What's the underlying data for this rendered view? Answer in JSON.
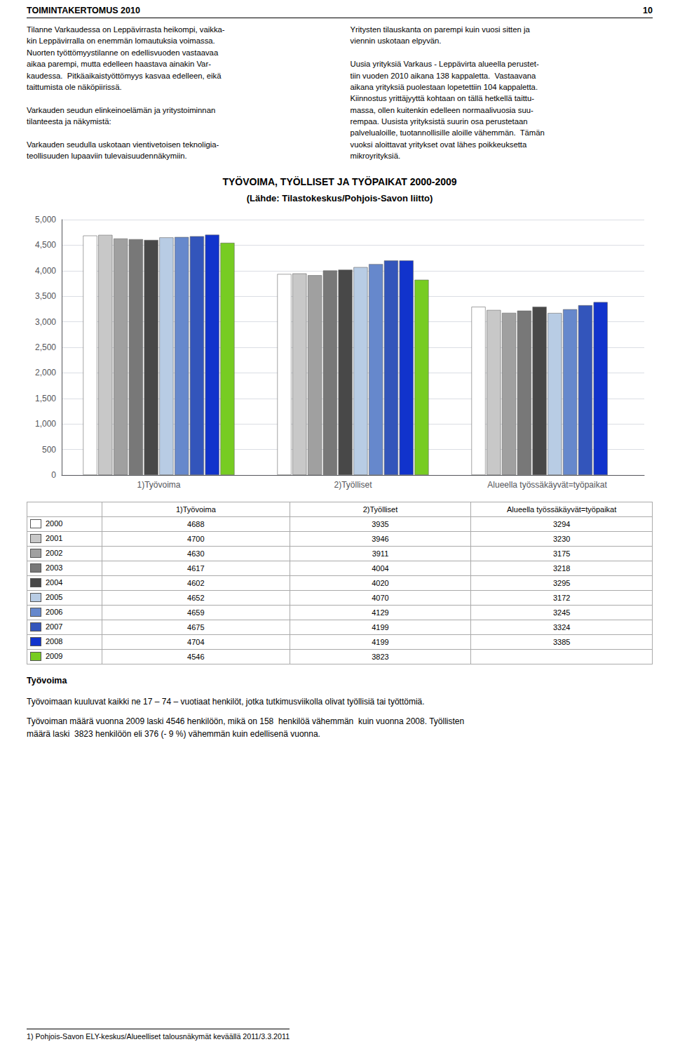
{
  "chart_data": {
    "type": "bar",
    "title": "TYÖVOIMA, TYÖLLISET JA TYÖPAIKAT 2000-2009",
    "subtitle": "(Lähde: Tilastokeskus/Pohjois-Savon liitto)",
    "categories": [
      "1)Työvoima",
      "2)Työlliset",
      "Alueella työssäkäyvät=työpaikat"
    ],
    "series": [
      {
        "name": "2000",
        "color": "white",
        "values": [
          4688,
          3935,
          3294
        ]
      },
      {
        "name": "2001",
        "color": "#c8c8c8",
        "values": [
          4700,
          3946,
          3230
        ]
      },
      {
        "name": "2002",
        "color": "#a0a0a0",
        "values": [
          4630,
          3911,
          3175
        ]
      },
      {
        "name": "2003",
        "color": "#787878",
        "values": [
          4617,
          4004,
          3218
        ]
      },
      {
        "name": "2004",
        "color": "#484848",
        "values": [
          4602,
          4020,
          3295
        ]
      },
      {
        "name": "2005",
        "color": "#b8cce4",
        "values": [
          4652,
          4070,
          3172
        ]
      },
      {
        "name": "2006",
        "color": "#6688cc",
        "values": [
          4659,
          4129,
          3245
        ]
      },
      {
        "name": "2007",
        "color": "#3355bb",
        "values": [
          4675,
          4199,
          3324
        ]
      },
      {
        "name": "2008",
        "color": "#1133cc",
        "values": [
          4704,
          4199,
          3385
        ]
      },
      {
        "name": "2009",
        "color": "#77cc22",
        "values": [
          4546,
          3823,
          null
        ]
      }
    ],
    "ylim": [
      0,
      5000
    ],
    "yticks": [
      0,
      500,
      1000,
      1500,
      2000,
      2500,
      3000,
      3500,
      4000,
      4500,
      5000
    ],
    "grid": true,
    "annotations": [
      "TOIMINTAKERTOMUS 2010",
      "10",
      "Tilanne Varkaudessa on Leppävirrasta heikompi, vaikka-\nkin Leppävirralla on enemmän lomautuksia voimassa.\nNuorten työttömyystilanne on edellisvuoden vastaavaa\naikaa parempi, mutta edelleen haastava ainakin Var-\nkaudessa.  Pitkäaikaistyöttömyys kasvaa edelleen, eikä\ntaittumista ole näköpiirissä.\n\nVarkauden seudun elinkeinoelämän ja yritystoiminnan\ntilanteesta ja näkymistä:\n\nVarkauden seudulla uskotaan vientivetoisen teknoligia-\nteollisuuden lupaaviin tulevaisuudennäkymiin.",
      "Yritysten tilauskanta on parempi kuin vuosi sitten ja\nviennin uskotaan elpyvän.\n\nUusia yrityksiä Varkaus - Leppävirta alueella perustet-\ntiin vuoden 2010 aikana 138 kappaletta.  Vastaavana\naikana yrityksiä puolestaan lopetettiin 104 kappaletta.\nKiinnostus yrittäjyyttä kohtaan on tällä hetkellä taittu-\nmassa, ollen kuitenkin edelleen normaalivuosia suu-\nrempaa. Uusista yrityksistä suurin osa perustetaan\npalvelualoille, tuotannollisille aloille vähemmän.  Tämän\nvuoksi aloittavat yritykset ovat lähes poikkeuksetta\nmikroyrityksiä.",
      "Työvoima",
      "Työvoimaan kuuluvat kaikki ne 17 – 74 – vuotiaat henkilöt, jotka tutkimusviikolla olivat työllisiä tai työttömiä.",
      "Työvoiman määrä vuonna 2009 laski 4546 henkilöön, mikä on 158  henkilöä vähemmän  kuin vuonna 2008. Työllisten\nmäärä laski  3823 henkilöön eli 376 (- 9 %) vähemmän kuin edellisenä vuonna.",
      "1) Pohjois-Savon ELY-keskus/Alueelliset talousnäkymät keväällä 2011/3.3.2011"
    ]
  }
}
